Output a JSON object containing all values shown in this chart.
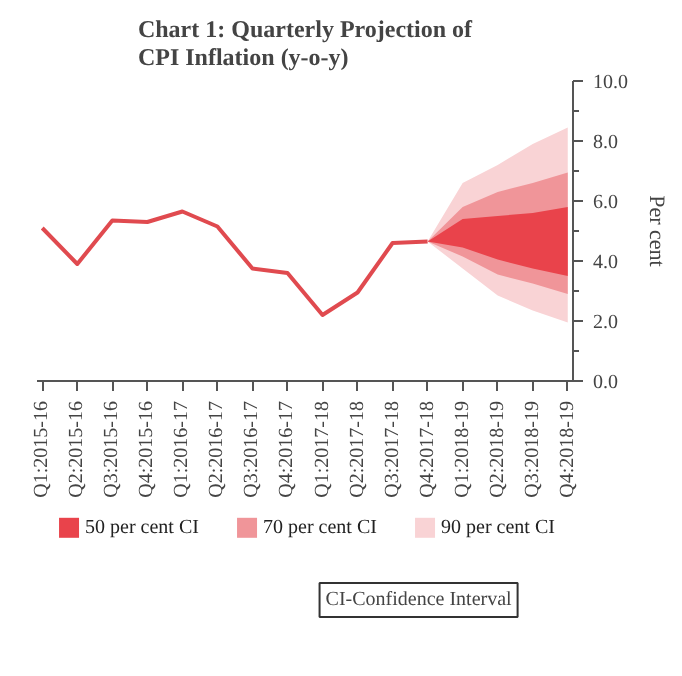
{
  "chart_data": {
    "type": "line",
    "title": "Chart 1: Quarterly Projection of CPI Inflation (y-o-y)",
    "ylabel": "Per cent",
    "categories": [
      "Q1:2015-16",
      "Q2:2015-16",
      "Q3:2015-16",
      "Q4:2015-16",
      "Q1:2016-17",
      "Q2:2016-17",
      "Q3:2016-17",
      "Q4:2016-17",
      "Q1:2017-18",
      "Q2:2017-18",
      "Q3:2017-18",
      "Q4:2017-18",
      "Q1:2018-19",
      "Q2:2018-19",
      "Q3:2018-19",
      "Q4:2018-19"
    ],
    "series": [
      {
        "color": "#e04a4f",
        "values": [
          5.1,
          3.9,
          5.35,
          5.3,
          5.65,
          5.15,
          3.75,
          3.6,
          2.2,
          2.95,
          4.6,
          4.65,
          null,
          null,
          null,
          null
        ]
      },
      {
        "name": "90 per cent CI",
        "type": "area",
        "color": "#f9d3d5",
        "values": [
          null,
          null,
          null,
          null,
          null,
          null,
          null,
          null,
          null,
          null,
          null,
          null,
          null,
          null,
          null,
          null
        ],
        "lower": [
          null,
          null,
          null,
          null,
          null,
          null,
          null,
          null,
          null,
          null,
          null,
          4.65,
          3.75,
          2.85,
          2.35,
          1.95
        ],
        "upper": [
          null,
          null,
          null,
          null,
          null,
          null,
          null,
          null,
          null,
          null,
          null,
          4.65,
          6.6,
          7.2,
          7.9,
          8.45
        ]
      },
      {
        "name": "70 per cent CI",
        "type": "area",
        "color": "#f09599",
        "values": [
          null,
          null,
          null,
          null,
          null,
          null,
          null,
          null,
          null,
          null,
          null,
          null,
          null,
          null,
          null,
          null
        ],
        "lower": [
          null,
          null,
          null,
          null,
          null,
          null,
          null,
          null,
          null,
          null,
          null,
          4.65,
          4.15,
          3.55,
          3.25,
          2.9
        ],
        "upper": [
          null,
          null,
          null,
          null,
          null,
          null,
          null,
          null,
          null,
          null,
          null,
          4.65,
          5.8,
          6.3,
          6.6,
          6.95
        ]
      },
      {
        "name": "50 per cent CI",
        "type": "area",
        "color": "#e9434b",
        "values": [
          null,
          null,
          null,
          null,
          null,
          null,
          null,
          null,
          null,
          null,
          null,
          null,
          null,
          null,
          null,
          null
        ],
        "lower": [
          null,
          null,
          null,
          null,
          null,
          null,
          null,
          null,
          null,
          null,
          null,
          4.65,
          4.45,
          4.05,
          3.75,
          3.5
        ],
        "upper": [
          null,
          null,
          null,
          null,
          null,
          null,
          null,
          null,
          null,
          null,
          null,
          4.65,
          5.4,
          5.5,
          5.6,
          5.8
        ]
      }
    ],
    "ylim": [
      0,
      10
    ],
    "yticks": [
      {
        "value": 0,
        "label": "0.0"
      },
      {
        "value": 2,
        "label": "2.0"
      },
      {
        "value": 4,
        "label": "4.0"
      },
      {
        "value": 6,
        "label": "6.0"
      },
      {
        "value": 8,
        "label": "8.0"
      },
      {
        "value": 10,
        "label": "10.0"
      }
    ],
    "grid": false,
    "legend": "bottom",
    "annotations": [
      "CI-Confidence Interval"
    ]
  }
}
